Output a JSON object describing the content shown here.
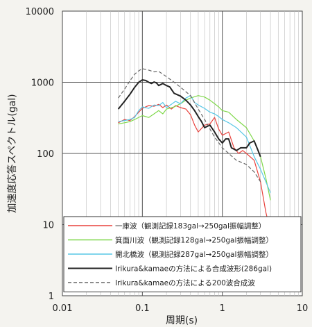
{
  "chart_data": {
    "type": "line",
    "xlabel": "周期(s)",
    "ylabel": "加速度応答スペクトル(gal)",
    "xscale": "log",
    "yscale": "log",
    "xlim": [
      0.01,
      10
    ],
    "ylim": [
      1,
      10000
    ],
    "x_ticks": [
      "0.01",
      "0.1",
      "1",
      "10"
    ],
    "y_ticks": [
      "1",
      "10",
      "100",
      "1000",
      "10000"
    ],
    "grid": true,
    "legend_position": "bottom-right",
    "series": [
      {
        "name": "一庫波（観測記録183gal→250gal振幅調整）",
        "color": "#e8413c",
        "style": "solid",
        "points": [
          [
            0.05,
            270
          ],
          [
            0.06,
            300
          ],
          [
            0.07,
            290
          ],
          [
            0.08,
            330
          ],
          [
            0.09,
            380
          ],
          [
            0.1,
            430
          ],
          [
            0.12,
            470
          ],
          [
            0.14,
            460
          ],
          [
            0.16,
            490
          ],
          [
            0.18,
            440
          ],
          [
            0.2,
            480
          ],
          [
            0.23,
            420
          ],
          [
            0.26,
            470
          ],
          [
            0.3,
            440
          ],
          [
            0.35,
            420
          ],
          [
            0.4,
            350
          ],
          [
            0.45,
            250
          ],
          [
            0.5,
            200
          ],
          [
            0.6,
            250
          ],
          [
            0.7,
            260
          ],
          [
            0.8,
            320
          ],
          [
            0.9,
            220
          ],
          [
            1.0,
            180
          ],
          [
            1.2,
            200
          ],
          [
            1.4,
            120
          ],
          [
            1.6,
            100
          ],
          [
            1.8,
            110
          ],
          [
            2.0,
            100
          ],
          [
            2.5,
            80
          ],
          [
            3.0,
            40
          ],
          [
            3.5,
            15
          ],
          [
            4.0,
            8
          ]
        ]
      },
      {
        "name": "箕面川波（観測記録128gal→250gal振幅調整）",
        "color": "#7fd84a",
        "style": "solid",
        "points": [
          [
            0.05,
            260
          ],
          [
            0.06,
            270
          ],
          [
            0.07,
            280
          ],
          [
            0.08,
            300
          ],
          [
            0.1,
            340
          ],
          [
            0.12,
            320
          ],
          [
            0.14,
            360
          ],
          [
            0.16,
            400
          ],
          [
            0.18,
            360
          ],
          [
            0.2,
            420
          ],
          [
            0.25,
            450
          ],
          [
            0.3,
            500
          ],
          [
            0.35,
            560
          ],
          [
            0.4,
            600
          ],
          [
            0.5,
            650
          ],
          [
            0.6,
            620
          ],
          [
            0.7,
            560
          ],
          [
            0.8,
            500
          ],
          [
            0.9,
            450
          ],
          [
            1.0,
            400
          ],
          [
            1.2,
            380
          ],
          [
            1.5,
            300
          ],
          [
            2.0,
            230
          ],
          [
            2.5,
            150
          ],
          [
            3.0,
            90
          ],
          [
            3.5,
            45
          ],
          [
            4.0,
            22
          ]
        ]
      },
      {
        "name": "開北橋波（観測記録287gal→250gal振幅調整）",
        "color": "#57c7e6",
        "style": "solid",
        "points": [
          [
            0.05,
            280
          ],
          [
            0.06,
            290
          ],
          [
            0.07,
            300
          ],
          [
            0.08,
            320
          ],
          [
            0.09,
            400
          ],
          [
            0.1,
            450
          ],
          [
            0.12,
            430
          ],
          [
            0.14,
            480
          ],
          [
            0.16,
            470
          ],
          [
            0.18,
            520
          ],
          [
            0.2,
            440
          ],
          [
            0.23,
            490
          ],
          [
            0.26,
            540
          ],
          [
            0.3,
            500
          ],
          [
            0.35,
            600
          ],
          [
            0.4,
            650
          ],
          [
            0.45,
            520
          ],
          [
            0.5,
            480
          ],
          [
            0.6,
            430
          ],
          [
            0.7,
            380
          ],
          [
            0.8,
            360
          ],
          [
            0.9,
            330
          ],
          [
            1.0,
            300
          ],
          [
            1.2,
            270
          ],
          [
            1.5,
            230
          ],
          [
            2.0,
            170
          ],
          [
            2.5,
            90
          ],
          [
            3.0,
            60
          ],
          [
            3.5,
            40
          ],
          [
            4.0,
            28
          ]
        ]
      },
      {
        "name": "Irikura&kamaeの方法による合成波形(286gal)",
        "color": "#222222",
        "style": "solid",
        "points": [
          [
            0.05,
            420
          ],
          [
            0.06,
            540
          ],
          [
            0.07,
            680
          ],
          [
            0.08,
            850
          ],
          [
            0.09,
            1000
          ],
          [
            0.1,
            1080
          ],
          [
            0.11,
            1060
          ],
          [
            0.12,
            1000
          ],
          [
            0.13,
            960
          ],
          [
            0.14,
            1010
          ],
          [
            0.15,
            980
          ],
          [
            0.16,
            900
          ],
          [
            0.18,
            960
          ],
          [
            0.2,
            900
          ],
          [
            0.22,
            860
          ],
          [
            0.25,
            700
          ],
          [
            0.3,
            640
          ],
          [
            0.35,
            560
          ],
          [
            0.4,
            480
          ],
          [
            0.45,
            400
          ],
          [
            0.5,
            330
          ],
          [
            0.55,
            280
          ],
          [
            0.6,
            230
          ],
          [
            0.7,
            250
          ],
          [
            0.8,
            200
          ],
          [
            0.9,
            160
          ],
          [
            1.0,
            140
          ],
          [
            1.1,
            160
          ],
          [
            1.2,
            160
          ],
          [
            1.3,
            120
          ],
          [
            1.5,
            110
          ],
          [
            1.7,
            120
          ],
          [
            2.0,
            120
          ],
          [
            2.2,
            140
          ],
          [
            2.5,
            150
          ],
          [
            2.8,
            110
          ],
          [
            3.0,
            90
          ]
        ]
      },
      {
        "name": "Irikura&kamaeの方法による200波合成波",
        "color": "#666666",
        "style": "dashed",
        "points": [
          [
            0.05,
            600
          ],
          [
            0.06,
            800
          ],
          [
            0.07,
            1050
          ],
          [
            0.08,
            1300
          ],
          [
            0.09,
            1450
          ],
          [
            0.1,
            1550
          ],
          [
            0.12,
            1480
          ],
          [
            0.14,
            1400
          ],
          [
            0.16,
            1420
          ],
          [
            0.18,
            1300
          ],
          [
            0.2,
            1200
          ],
          [
            0.25,
            1000
          ],
          [
            0.3,
            850
          ],
          [
            0.4,
            650
          ],
          [
            0.5,
            420
          ],
          [
            0.6,
            300
          ],
          [
            0.7,
            220
          ],
          [
            0.8,
            170
          ],
          [
            1.0,
            120
          ],
          [
            1.2,
            100
          ],
          [
            1.5,
            80
          ],
          [
            2.0,
            70
          ],
          [
            2.5,
            55
          ],
          [
            3.0,
            40
          ]
        ]
      }
    ]
  }
}
